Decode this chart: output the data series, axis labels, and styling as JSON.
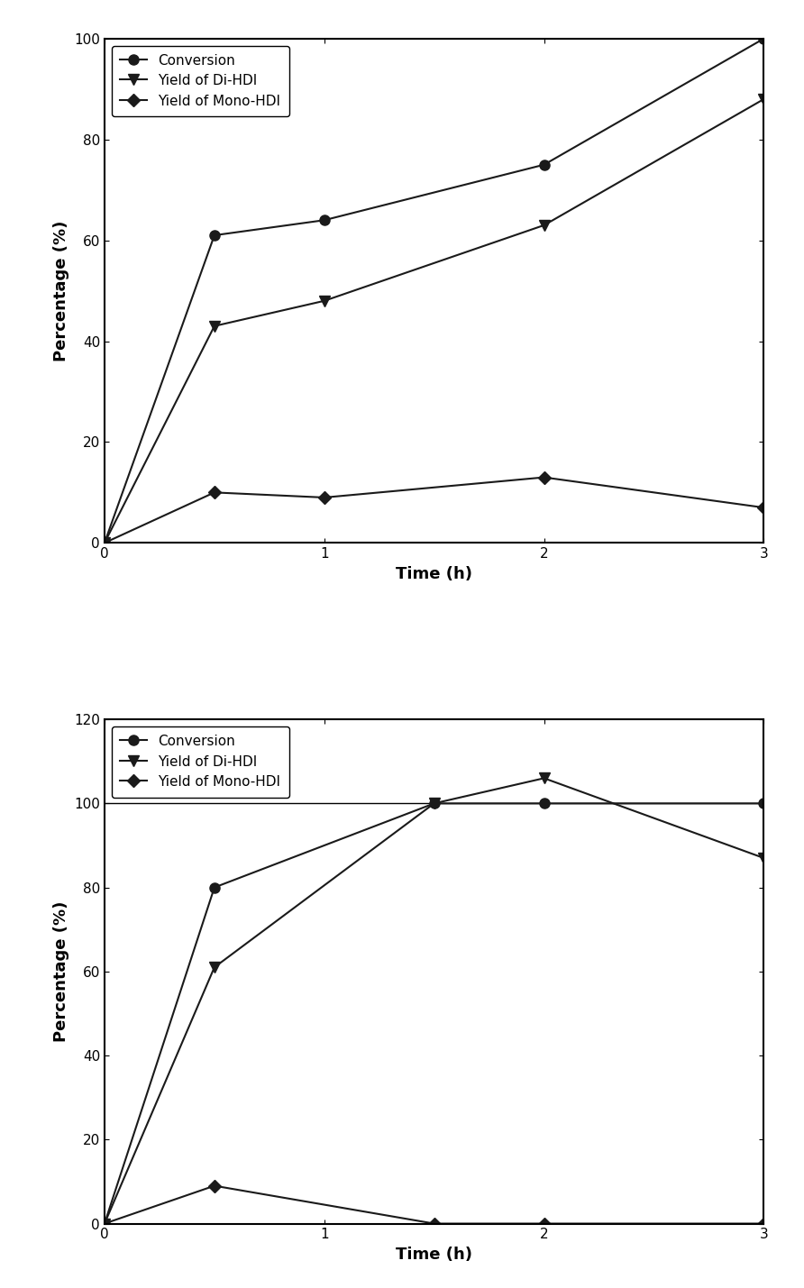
{
  "top": {
    "title": "",
    "xlabel": "Time (h)",
    "ylabel": "Percentage (%)",
    "ylim": [
      0,
      100
    ],
    "yticks": [
      0,
      20,
      40,
      60,
      80,
      100
    ],
    "xlim": [
      0,
      3
    ],
    "xticks": [
      0,
      1,
      2,
      3
    ],
    "series": [
      {
        "label": "Conversion",
        "x": [
          0,
          0.5,
          1,
          2,
          3
        ],
        "y": [
          0,
          61,
          64,
          75,
          100
        ],
        "marker": "o",
        "color": "#1a1a1a",
        "markersize": 8,
        "linewidth": 1.5
      },
      {
        "label": "Yield of Di-HDI",
        "x": [
          0,
          0.5,
          1,
          2,
          3
        ],
        "y": [
          0,
          43,
          48,
          63,
          88
        ],
        "marker": "v",
        "color": "#1a1a1a",
        "markersize": 8,
        "linewidth": 1.5
      },
      {
        "label": "Yield of Mono-HDI",
        "x": [
          0,
          0.5,
          1,
          2,
          3
        ],
        "y": [
          0,
          10,
          9,
          13,
          7
        ],
        "marker": "D",
        "color": "#1a1a1a",
        "markersize": 7,
        "linewidth": 1.5
      }
    ]
  },
  "bottom": {
    "title": "",
    "xlabel": "Time (h)",
    "ylabel": "Percentage (%)",
    "ylim": [
      0,
      120
    ],
    "yticks": [
      0,
      20,
      40,
      60,
      80,
      100,
      120
    ],
    "xlim": [
      0,
      3
    ],
    "xticks": [
      0,
      1,
      2,
      3
    ],
    "series": [
      {
        "label": "Conversion",
        "x": [
          0,
          0.5,
          1.5,
          2,
          3
        ],
        "y": [
          0,
          80,
          100,
          100,
          100
        ],
        "marker": "o",
        "color": "#1a1a1a",
        "markersize": 8,
        "linewidth": 1.5
      },
      {
        "label": "Yield of Di-HDI",
        "x": [
          0,
          0.5,
          1.5,
          2,
          3
        ],
        "y": [
          0,
          61,
          100,
          106,
          87
        ],
        "marker": "v",
        "color": "#1a1a1a",
        "markersize": 8,
        "linewidth": 1.5
      },
      {
        "label": "Yield of Mono-HDI",
        "x": [
          0,
          0.5,
          1.5,
          2,
          3
        ],
        "y": [
          0,
          9,
          0,
          0,
          0
        ],
        "marker": "D",
        "color": "#1a1a1a",
        "markersize": 7,
        "linewidth": 1.5
      }
    ]
  },
  "background_color": "#ffffff",
  "legend_fontsize": 11,
  "axis_label_fontsize": 13,
  "tick_fontsize": 11
}
